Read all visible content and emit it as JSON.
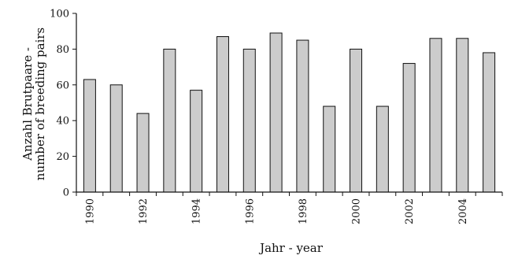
{
  "chart_data": {
    "type": "bar",
    "categories": [
      "1990",
      "1991",
      "1992",
      "1993",
      "1994",
      "1995",
      "1996",
      "1997",
      "1998",
      "1999",
      "2000",
      "2001",
      "2002",
      "2003",
      "2004",
      "2005"
    ],
    "values": [
      63,
      60,
      44,
      80,
      57,
      87,
      80,
      89,
      85,
      48,
      80,
      48,
      72,
      86,
      86,
      78
    ],
    "xtick_labels": [
      "1990",
      "1992",
      "1994",
      "1996",
      "1998",
      "2000",
      "2002",
      "2004"
    ],
    "xlabel": "Jahr  - year",
    "ylabel_lines": [
      "Anzahl Brutpaare -",
      "number of breeding pairs"
    ],
    "ylim": [
      0,
      100
    ],
    "yticks": [
      0,
      20,
      40,
      60,
      80,
      100
    ],
    "grid": false,
    "bar_color": "#cccccc",
    "edge_color": "#111111"
  }
}
